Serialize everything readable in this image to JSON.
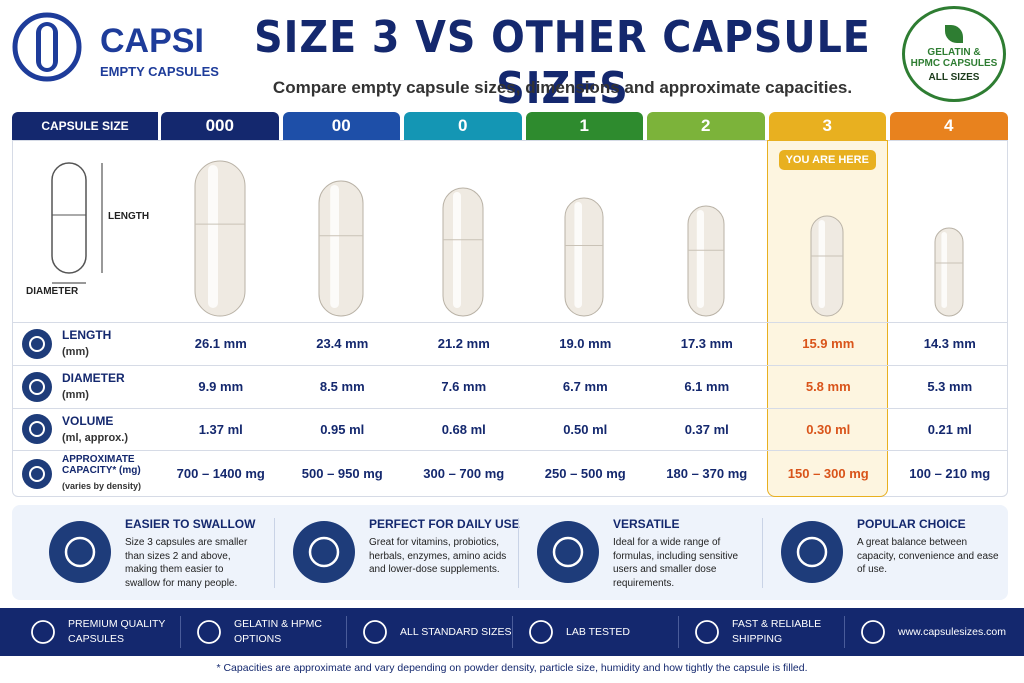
{
  "brand": {
    "name": "CAPSI",
    "tagline": "EMPTY CAPSULES"
  },
  "header": {
    "title": "SIZE 3 VS OTHER CAPSULE SIZES",
    "subtitle": "Compare empty capsule sizes, dimensions and approximate capacities."
  },
  "badge": {
    "line1": "GELATIN &",
    "line2": "HPMC CAPSULES",
    "line3": "ALL SIZES"
  },
  "table": {
    "corner": "CAPSULE SIZE",
    "diagram": {
      "length": "LENGTH",
      "diameter": "DIAMETER"
    },
    "highlight": "YOU ARE HERE",
    "sizes": [
      {
        "label": "000",
        "color": "#14286e"
      },
      {
        "label": "00",
        "color": "#1e4fa8"
      },
      {
        "label": "0",
        "color": "#1496b4"
      },
      {
        "label": "1",
        "color": "#2e8b2e"
      },
      {
        "label": "2",
        "color": "#7cb33a"
      },
      {
        "label": "3",
        "color": "#e8b020"
      },
      {
        "label": "4",
        "color": "#e8821e"
      }
    ],
    "rows": [
      {
        "label": "LENGTH",
        "unit": "(mm)",
        "values": [
          "26.1 mm",
          "23.4 mm",
          "21.2 mm",
          "19.0 mm",
          "17.3 mm",
          "15.9 mm",
          "14.3 mm"
        ]
      },
      {
        "label": "DIAMETER",
        "unit": "(mm)",
        "values": [
          "9.9 mm",
          "8.5 mm",
          "7.6 mm",
          "6.7 mm",
          "6.1 mm",
          "5.8 mm",
          "5.3 mm"
        ]
      },
      {
        "label": "VOLUME",
        "unit": "(ml, approx.)",
        "values": [
          "1.37 ml",
          "0.95 ml",
          "0.68 ml",
          "0.50 ml",
          "0.37 ml",
          "0.30 ml",
          "0.21 ml"
        ]
      },
      {
        "label": "APPROXIMATE CAPACITY* (mg)",
        "unit": "(varies by density)",
        "values": [
          "700 – 1400 mg",
          "500 – 950 mg",
          "300 – 700 mg",
          "250 – 500 mg",
          "180 – 370 mg",
          "150 – 300 mg",
          "100 – 210 mg"
        ]
      }
    ]
  },
  "features": [
    {
      "title": "EASIER TO SWALLOW",
      "text": "Size 3 capsules are smaller than sizes 2 and above, making them easier to swallow for many people."
    },
    {
      "title": "PERFECT FOR DAILY USE",
      "text": "Great for vitamins, probiotics, herbals, enzymes, amino acids and lower-dose supplements."
    },
    {
      "title": "VERSATILE",
      "text": "Ideal for a wide range of formulas, including sensitive users and smaller dose requirements."
    },
    {
      "title": "POPULAR CHOICE",
      "text": "A great balance between capacity, convenience and ease of use."
    }
  ],
  "footer": [
    "PREMIUM QUALITY CAPSULES",
    "GELATIN & HPMC OPTIONS",
    "ALL STANDARD SIZES",
    "LAB TESTED",
    "FAST & RELIABLE SHIPPING",
    "www.capsulesizes.com"
  ],
  "footnote": "* Capacities are approximate and vary depending on powder density, particle size, humidity and how tightly the capsule is filled."
}
